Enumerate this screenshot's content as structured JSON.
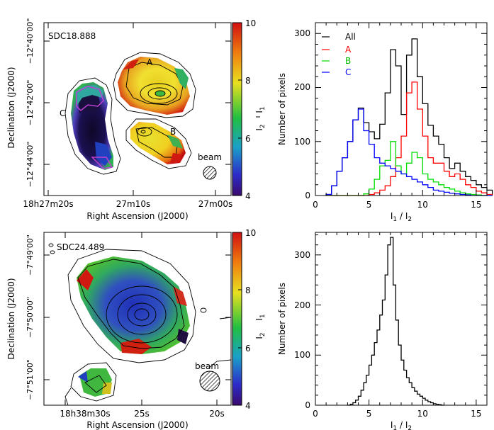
{
  "chart_data": [
    {
      "type": "heatmap",
      "label": "SDC18.888",
      "xlabel": "Right Ascension (J2000)",
      "ylabel": "Declination (J2000)",
      "x_ticks": [
        "18h27m20s",
        "27m10s",
        "27m00s"
      ],
      "y_ticks": [
        "−12°40'00\"",
        "−12°42'00\"",
        "−12°44'00\""
      ],
      "colorbar": {
        "label": "I1 / I2",
        "min": 4,
        "max": 10,
        "ticks": [
          4,
          6,
          8,
          10
        ]
      },
      "annotations": [
        "A",
        "B",
        "C",
        "beam"
      ]
    },
    {
      "type": "bar",
      "subtype": "histogram",
      "xlabel": "I1 / I2",
      "ylabel": "Number of pixels",
      "xlim": [
        0,
        16
      ],
      "ylim": [
        0,
        320
      ],
      "x_ticks": [
        0,
        5,
        10,
        15
      ],
      "y_ticks": [
        0,
        100,
        200,
        300
      ],
      "legend": [
        "All",
        "A",
        "B",
        "C"
      ],
      "legend_position": "top-left",
      "bin_width": 0.5,
      "x_start": 1.0,
      "series": [
        {
          "name": "All",
          "color": "#000000",
          "values": [
            2,
            18,
            45,
            70,
            100,
            140,
            162,
            135,
            118,
            105,
            132,
            190,
            270,
            240,
            150,
            260,
            290,
            220,
            170,
            130,
            110,
            95,
            70,
            50,
            60,
            45,
            35,
            28,
            20,
            15,
            10
          ]
        },
        {
          "name": "A",
          "color": "#ff0000",
          "values": [
            0,
            0,
            0,
            0,
            0,
            0,
            0,
            0,
            2,
            5,
            10,
            18,
            35,
            70,
            110,
            190,
            210,
            160,
            110,
            70,
            60,
            60,
            45,
            35,
            40,
            30,
            20,
            15,
            8,
            5,
            2
          ]
        },
        {
          "name": "B",
          "color": "#00dd00",
          "values": [
            0,
            0,
            0,
            0,
            0,
            0,
            0,
            3,
            12,
            30,
            55,
            65,
            100,
            55,
            40,
            60,
            80,
            70,
            40,
            30,
            25,
            20,
            15,
            12,
            8,
            5,
            3,
            2,
            1,
            0,
            0
          ]
        },
        {
          "name": "C",
          "color": "#0000ff",
          "values": [
            2,
            18,
            45,
            70,
            100,
            140,
            160,
            120,
            95,
            70,
            60,
            55,
            50,
            45,
            40,
            35,
            30,
            25,
            20,
            15,
            10,
            8,
            6,
            4,
            3,
            2,
            1,
            0,
            0,
            0,
            0
          ]
        }
      ]
    },
    {
      "type": "heatmap",
      "label": "SDC24.489",
      "xlabel": "Right Ascension (J2000)",
      "ylabel": "Declination (J2000)",
      "x_ticks": [
        "18h38m30s",
        "25s",
        "20s"
      ],
      "y_ticks": [
        "−7°49'00\"",
        "−7°50'00\"",
        "−7°51'00\""
      ],
      "colorbar": {
        "label": "I1 / I2",
        "min": 4,
        "max": 10,
        "ticks": [
          4,
          6,
          8,
          10
        ]
      },
      "annotations": [
        "beam"
      ]
    },
    {
      "type": "bar",
      "subtype": "histogram",
      "xlabel": "I1 / I2",
      "ylabel": "Number of pixels",
      "xlim": [
        0,
        16
      ],
      "ylim": [
        0,
        345
      ],
      "x_ticks": [
        0,
        5,
        10,
        15
      ],
      "y_ticks": [
        0,
        100,
        200,
        300
      ],
      "bin_width": 0.25,
      "x_start": 3.0,
      "series": [
        {
          "name": "All",
          "color": "#000000",
          "values": [
            0,
            2,
            5,
            10,
            18,
            30,
            45,
            60,
            80,
            100,
            125,
            150,
            180,
            210,
            260,
            320,
            335,
            240,
            170,
            120,
            90,
            70,
            55,
            45,
            35,
            28,
            22,
            18,
            14,
            10,
            7,
            5,
            3,
            2,
            1,
            0
          ]
        }
      ]
    }
  ],
  "panels": {
    "top_map": {
      "label": "SDC18.888",
      "xlabel": "Right Ascension (J2000)",
      "ylabel": "Declination (J2000)",
      "x_ticks": [
        "18h27m20s",
        "27m10s",
        "27m00s"
      ],
      "y_ticks": [
        "−12°40'00\"",
        "−12°42'00\"",
        "−12°44'00\""
      ],
      "annot_a": "A",
      "annot_b": "B",
      "annot_c": "C",
      "beam": "beam",
      "colorbar_ticks": [
        "4",
        "6",
        "8",
        "10"
      ]
    },
    "bottom_map": {
      "label": "SDC24.489",
      "xlabel": "Right Ascension (J2000)",
      "ylabel": "Declination (J2000)",
      "x_ticks": [
        "18h38m30s",
        "25s",
        "20s"
      ],
      "y_ticks": [
        "−7°49'00\"",
        "−7°50'00\"",
        "−7°51'00\""
      ],
      "beam": "beam",
      "colorbar_ticks": [
        "4",
        "6",
        "8",
        "10"
      ]
    },
    "top_hist": {
      "xlabel": "I1 / I2",
      "ylabel": "Number of pixels",
      "x_ticks": [
        "0",
        "5",
        "10",
        "15"
      ],
      "y_ticks": [
        "0",
        "100",
        "200",
        "300"
      ],
      "legend": [
        "All",
        "A",
        "B",
        "C"
      ]
    },
    "bottom_hist": {
      "xlabel": "I1 / I2",
      "ylabel": "Number of pixels",
      "x_ticks": [
        "0",
        "5",
        "10",
        "15"
      ],
      "y_ticks": [
        "0",
        "100",
        "200",
        "300"
      ]
    }
  }
}
